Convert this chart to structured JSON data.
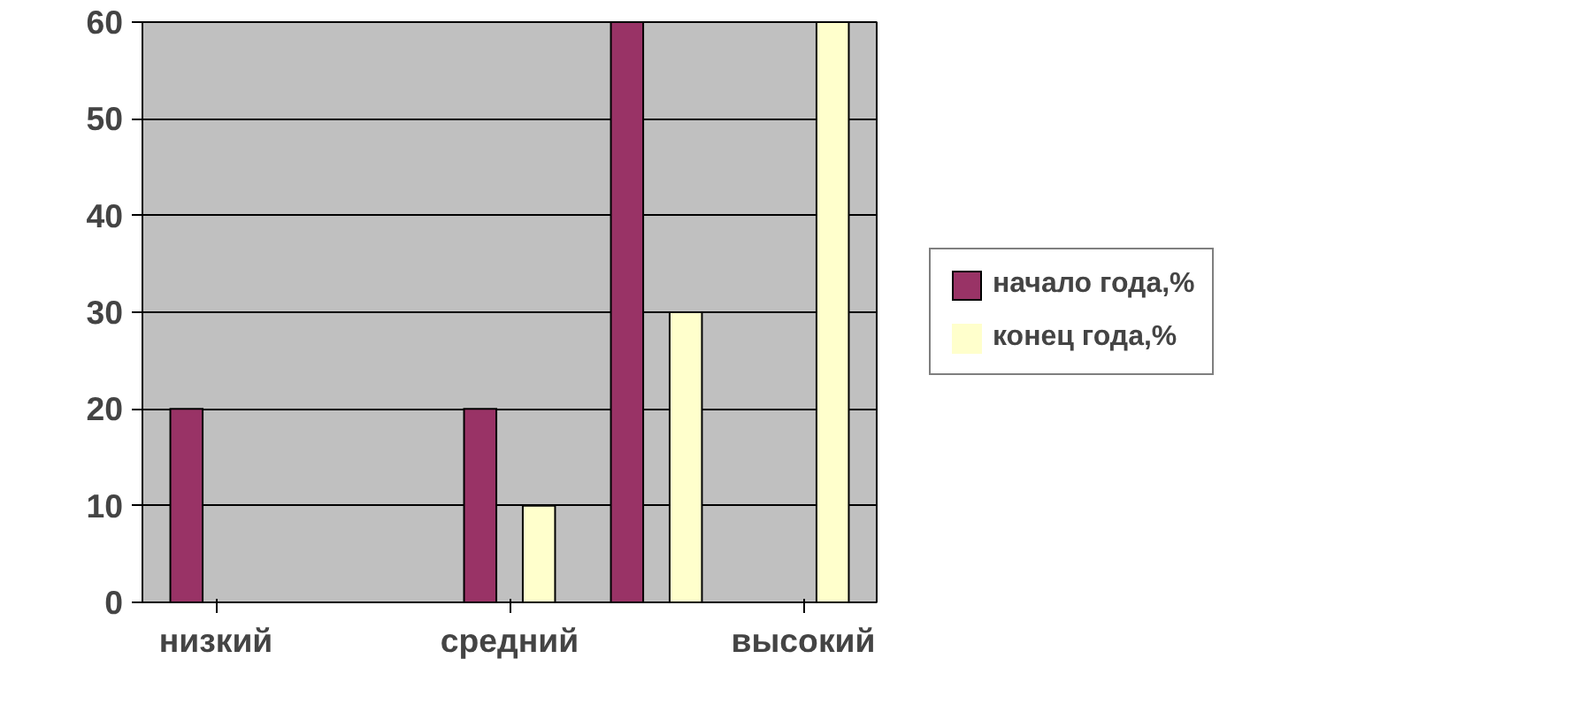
{
  "chart_data": {
    "type": "bar",
    "categories": [
      "низкий",
      null,
      "средний",
      null,
      "высокий"
    ],
    "series": [
      {
        "name": "начало года,%",
        "color": "#993366",
        "values": [
          20,
          0,
          20,
          60,
          0
        ]
      },
      {
        "name": "конец года,%",
        "color": "#ffffcc",
        "values": [
          0,
          0,
          10,
          30,
          60
        ]
      }
    ],
    "ylim": [
      0,
      60
    ],
    "yticks": [
      0,
      10,
      20,
      30,
      40,
      50,
      60
    ],
    "grid": "y",
    "legend": "right"
  }
}
